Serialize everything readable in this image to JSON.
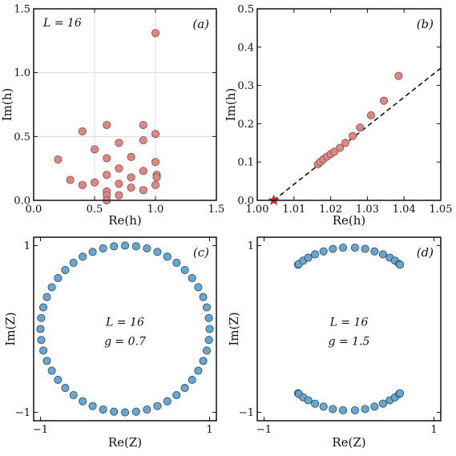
{
  "chart_data": [
    {
      "panel_label": "(a)",
      "type": "scatter",
      "xlabel": "Re(h)",
      "ylabel": "Im(h)",
      "xlim": [
        0,
        1.5
      ],
      "ylim": [
        0,
        1.5
      ],
      "xticks": [
        "0.0",
        "0.5",
        "1.0",
        "1.5"
      ],
      "yticks": [
        "0.0",
        "0.5",
        "1.0",
        "1.5"
      ],
      "grid": true,
      "annotations": [
        "L = 16"
      ],
      "color": "#d98a87",
      "points": [
        [
          1.0,
          1.31
        ],
        [
          0.4,
          0.54
        ],
        [
          0.6,
          0.59
        ],
        [
          0.9,
          0.59
        ],
        [
          1.0,
          0.52
        ],
        [
          0.7,
          0.45
        ],
        [
          0.9,
          0.47
        ],
        [
          0.5,
          0.4
        ],
        [
          0.8,
          0.34
        ],
        [
          0.6,
          0.33
        ],
        [
          0.2,
          0.32
        ],
        [
          1.0,
          0.3
        ],
        [
          0.7,
          0.25
        ],
        [
          0.9,
          0.23
        ],
        [
          1.01,
          0.2
        ],
        [
          0.6,
          0.2
        ],
        [
          0.8,
          0.18
        ],
        [
          0.3,
          0.16
        ],
        [
          1.01,
          0.18
        ],
        [
          0.5,
          0.14
        ],
        [
          0.7,
          0.13
        ],
        [
          0.4,
          0.12
        ],
        [
          1.0,
          0.12
        ],
        [
          0.8,
          0.1
        ],
        [
          0.9,
          0.08
        ],
        [
          0.6,
          0.07
        ],
        [
          0.6,
          0.04
        ],
        [
          0.7,
          0.04
        ],
        [
          0.6,
          0.0
        ]
      ]
    },
    {
      "panel_label": "(b)",
      "type": "scatter",
      "xlabel": "Re(h)",
      "ylabel": "Im(h)",
      "xlim": [
        1.0,
        1.05
      ],
      "ylim": [
        0,
        0.5
      ],
      "xticks": [
        "1.00",
        "1.01",
        "1.02",
        "1.03",
        "1.04",
        "1.05"
      ],
      "yticks": [
        "0.0",
        "0.1",
        "0.2",
        "0.3",
        "0.4",
        "0.5"
      ],
      "grid": false,
      "color": "#d98a87",
      "points": [
        [
          1.0165,
          0.094
        ],
        [
          1.0172,
          0.1
        ],
        [
          1.018,
          0.107
        ],
        [
          1.019,
          0.114
        ],
        [
          1.02,
          0.121
        ],
        [
          1.021,
          0.127
        ],
        [
          1.0225,
          0.137
        ],
        [
          1.024,
          0.15
        ],
        [
          1.026,
          0.168
        ],
        [
          1.028,
          0.19
        ],
        [
          1.031,
          0.222
        ],
        [
          1.0345,
          0.26
        ],
        [
          1.0385,
          0.325
        ]
      ],
      "critical_point": [
        1.0045,
        0.0
      ],
      "fit_line": [
        [
          1.0045,
          0.0
        ],
        [
          1.05,
          0.345
        ]
      ]
    },
    {
      "panel_label": "(c)",
      "type": "scatter",
      "xlabel": "Re(Z)",
      "ylabel": "Im(Z)",
      "xlim": [
        -1.08,
        1.08
      ],
      "ylim": [
        -1.1,
        1.1
      ],
      "xticks": [
        "−1",
        "1"
      ],
      "yticks": [
        "−1",
        "1"
      ],
      "grid": false,
      "annotations": [
        "L = 16",
        "g = 0.7"
      ],
      "color": "#6aa6cd",
      "points": [
        [
          0.131,
          0.991
        ],
        [
          0.383,
          0.924
        ],
        [
          0.609,
          0.793
        ],
        [
          0.793,
          0.609
        ],
        [
          0.924,
          0.383
        ],
        [
          0.991,
          0.131
        ],
        [
          0.991,
          -0.131
        ],
        [
          0.924,
          -0.383
        ],
        [
          0.793,
          -0.609
        ],
        [
          0.609,
          -0.793
        ],
        [
          0.383,
          -0.924
        ],
        [
          0.131,
          -0.991
        ],
        [
          -0.131,
          -0.991
        ],
        [
          -0.383,
          -0.924
        ],
        [
          -0.609,
          -0.793
        ],
        [
          -0.793,
          -0.609
        ],
        [
          -0.924,
          -0.383
        ],
        [
          -0.991,
          -0.131
        ],
        [
          -0.991,
          0.131
        ],
        [
          -0.924,
          0.383
        ],
        [
          -0.793,
          0.609
        ],
        [
          -0.609,
          0.793
        ],
        [
          -0.383,
          0.924
        ],
        [
          -0.131,
          0.991
        ],
        [
          0.0,
          1.0
        ],
        [
          0.259,
          0.966
        ],
        [
          0.5,
          0.866
        ],
        [
          0.707,
          0.707
        ],
        [
          0.866,
          0.5
        ],
        [
          0.966,
          0.259
        ],
        [
          1.0,
          0.0
        ],
        [
          0.966,
          -0.259
        ],
        [
          0.866,
          -0.5
        ],
        [
          0.707,
          -0.707
        ],
        [
          0.5,
          -0.866
        ],
        [
          0.259,
          -0.966
        ],
        [
          0.0,
          -1.0
        ],
        [
          -0.259,
          -0.966
        ],
        [
          -0.5,
          -0.866
        ],
        [
          -0.707,
          -0.707
        ],
        [
          -0.866,
          -0.5
        ],
        [
          -0.966,
          -0.259
        ],
        [
          -1.0,
          0.0
        ],
        [
          -0.966,
          0.259
        ],
        [
          -0.866,
          0.5
        ],
        [
          -0.707,
          0.707
        ],
        [
          -0.5,
          0.866
        ],
        [
          -0.259,
          0.966
        ]
      ]
    },
    {
      "panel_label": "(d)",
      "type": "scatter",
      "xlabel": "Re(Z)",
      "ylabel": "Im(Z)",
      "xlim": [
        -1.08,
        1.08
      ],
      "ylim": [
        -1.1,
        1.1
      ],
      "xticks": [
        "−1",
        "1"
      ],
      "yticks": [
        "−1",
        "1"
      ],
      "grid": false,
      "annotations": [
        "L = 16",
        "g = 1.5"
      ],
      "color": "#6aa6cd",
      "points": [
        [
          -0.6,
          0.77
        ],
        [
          -0.59,
          0.78
        ],
        [
          -0.54,
          0.82
        ],
        [
          -0.48,
          0.855
        ],
        [
          -0.4,
          0.895
        ],
        [
          -0.3,
          0.93
        ],
        [
          -0.19,
          0.96
        ],
        [
          -0.07,
          0.975
        ],
        [
          0.07,
          0.975
        ],
        [
          0.19,
          0.96
        ],
        [
          0.3,
          0.93
        ],
        [
          0.4,
          0.895
        ],
        [
          0.48,
          0.855
        ],
        [
          0.54,
          0.82
        ],
        [
          0.59,
          0.78
        ],
        [
          0.6,
          0.77
        ],
        [
          -0.6,
          -0.77
        ],
        [
          -0.59,
          -0.78
        ],
        [
          -0.54,
          -0.82
        ],
        [
          -0.48,
          -0.855
        ],
        [
          -0.4,
          -0.895
        ],
        [
          -0.3,
          -0.93
        ],
        [
          -0.19,
          -0.96
        ],
        [
          -0.07,
          -0.975
        ],
        [
          0.07,
          -0.975
        ],
        [
          0.19,
          -0.96
        ],
        [
          0.3,
          -0.93
        ],
        [
          0.4,
          -0.895
        ],
        [
          0.48,
          -0.855
        ],
        [
          0.54,
          -0.82
        ],
        [
          0.59,
          -0.78
        ],
        [
          0.6,
          -0.77
        ]
      ]
    }
  ]
}
